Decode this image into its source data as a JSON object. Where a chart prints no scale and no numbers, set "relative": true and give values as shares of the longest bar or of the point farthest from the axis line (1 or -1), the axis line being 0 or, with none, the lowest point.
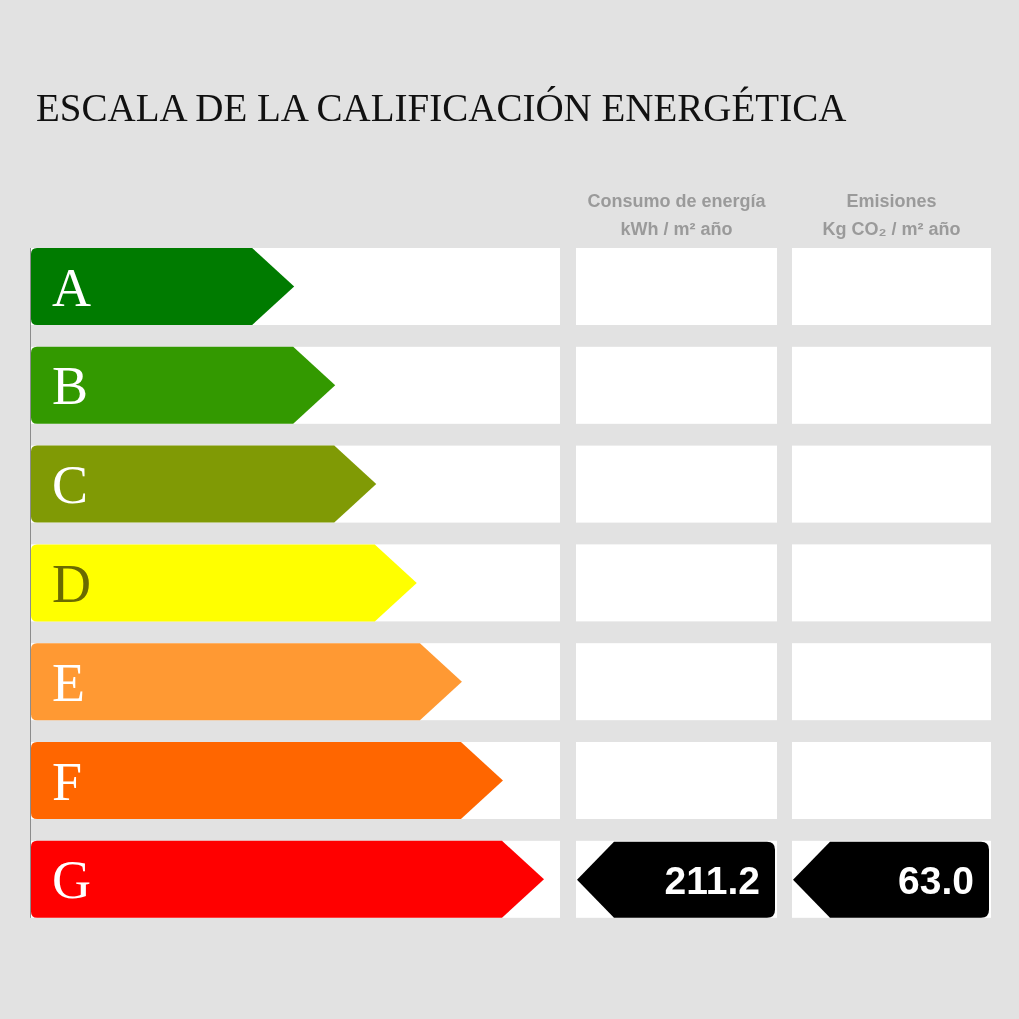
{
  "chart_data": {
    "type": "bar",
    "orientation": "horizontal",
    "relative": true,
    "title": "ESCALA DE LA CALIFICACIÓN ENERGÉTICA",
    "categories": [
      "A",
      "B",
      "C",
      "D",
      "E",
      "F",
      "G"
    ],
    "values": [
      0.513,
      0.593,
      0.673,
      0.752,
      0.84,
      0.92,
      1
    ],
    "colors": [
      "#007b00",
      "#339900",
      "#809a05",
      "#ffff00",
      "#ff9933",
      "#ff6600",
      "#ff0000"
    ],
    "annotations": [
      "Consumo de energía\nkWh / m² año",
      "Emisiones\nKg CO₂ / m² año",
      "211.2",
      "63.0"
    ]
  }
}
